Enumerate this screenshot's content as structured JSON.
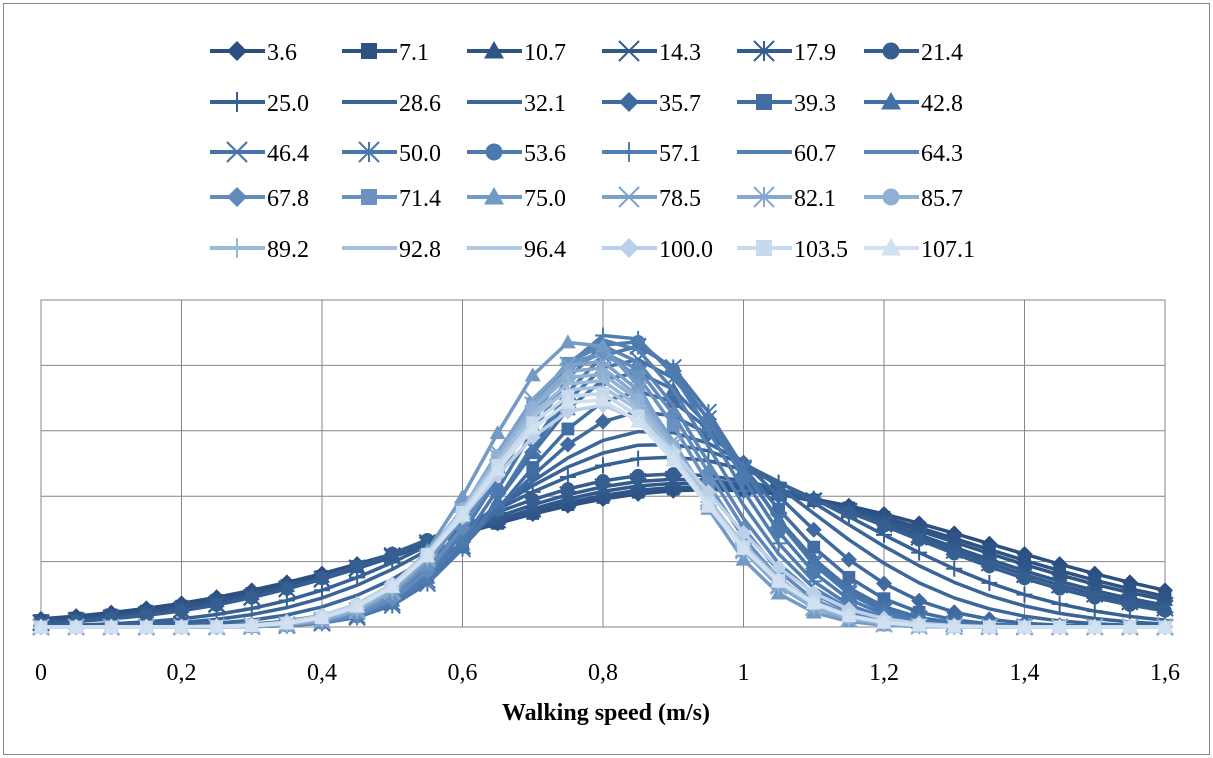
{
  "chart_data": {
    "type": "line",
    "title": "",
    "xlabel": "Walking speed (m/s)",
    "ylabel": "",
    "xlim": [
      0,
      1.6
    ],
    "ylim": [
      0,
      0.25
    ],
    "x_tick_labels": [
      "0",
      "0,2",
      "0,4",
      "0,6",
      "0,8",
      "1",
      "1,2",
      "1,4",
      "1,6"
    ],
    "x_tick_values": [
      0,
      0.2,
      0.4,
      0.6,
      0.8,
      1.0,
      1.2,
      1.4,
      1.6
    ],
    "grid": true,
    "legend_position": "top",
    "x_step": 0.05,
    "series": [
      {
        "name": "3.6",
        "color": "#2b4f80",
        "marker": "diamond",
        "mean": 0.95,
        "sd": 0.4,
        "peak": 0.105
      },
      {
        "name": "7.1",
        "color": "#2d5283",
        "marker": "square",
        "mean": 0.94,
        "sd": 0.38,
        "peak": 0.106
      },
      {
        "name": "10.7",
        "color": "#2f5587",
        "marker": "triangle",
        "mean": 0.93,
        "sd": 0.37,
        "peak": 0.107
      },
      {
        "name": "14.3",
        "color": "#31588a",
        "marker": "x",
        "mean": 0.92,
        "sd": 0.35,
        "peak": 0.11
      },
      {
        "name": "17.9",
        "color": "#335b8e",
        "marker": "asterisk",
        "mean": 0.91,
        "sd": 0.34,
        "peak": 0.113
      },
      {
        "name": "21.4",
        "color": "#355e91",
        "marker": "circle",
        "mean": 0.9,
        "sd": 0.33,
        "peak": 0.117
      },
      {
        "name": "25.0",
        "color": "#376195",
        "marker": "plus",
        "mean": 0.89,
        "sd": 0.28,
        "peak": 0.13
      },
      {
        "name": "28.6",
        "color": "#3a6498",
        "marker": "none",
        "mean": 0.88,
        "sd": 0.25,
        "peak": 0.14
      },
      {
        "name": "32.1",
        "color": "#3c679b",
        "marker": "none",
        "mean": 0.87,
        "sd": 0.22,
        "peak": 0.15
      },
      {
        "name": "35.7",
        "color": "#3e6a9f",
        "marker": "diamond",
        "mean": 0.86,
        "sd": 0.19,
        "peak": 0.165
      },
      {
        "name": "39.3",
        "color": "#416da2",
        "marker": "square",
        "mean": 0.85,
        "sd": 0.17,
        "peak": 0.18
      },
      {
        "name": "42.8",
        "color": "#4370a5",
        "marker": "triangle",
        "mean": 0.84,
        "sd": 0.16,
        "peak": 0.195
      },
      {
        "name": "46.4",
        "color": "#4673a8",
        "marker": "x",
        "mean": 0.84,
        "sd": 0.155,
        "peak": 0.205
      },
      {
        "name": "50.0",
        "color": "#4976ab",
        "marker": "asterisk",
        "mean": 0.84,
        "sd": 0.15,
        "peak": 0.215
      },
      {
        "name": "53.6",
        "color": "#4c79ae",
        "marker": "circle",
        "mean": 0.83,
        "sd": 0.148,
        "peak": 0.22
      },
      {
        "name": "57.1",
        "color": "#4f7cb1",
        "marker": "plus",
        "mean": 0.82,
        "sd": 0.145,
        "peak": 0.225
      },
      {
        "name": "60.7",
        "color": "#5580b4",
        "marker": "none",
        "mean": 0.81,
        "sd": 0.145,
        "peak": 0.22
      },
      {
        "name": "64.3",
        "color": "#5b85b8",
        "marker": "none",
        "mean": 0.8,
        "sd": 0.145,
        "peak": 0.215
      },
      {
        "name": "67.8",
        "color": "#628bbc",
        "marker": "diamond",
        "mean": 0.8,
        "sd": 0.14,
        "peak": 0.21
      },
      {
        "name": "71.4",
        "color": "#6a92c0",
        "marker": "square",
        "mean": 0.79,
        "sd": 0.14,
        "peak": 0.21
      },
      {
        "name": "75.0",
        "color": "#7399c5",
        "marker": "triangle",
        "mean": 0.77,
        "sd": 0.135,
        "peak": 0.22
      },
      {
        "name": "78.5",
        "color": "#7ca1c9",
        "marker": "x",
        "mean": 0.78,
        "sd": 0.14,
        "peak": 0.205
      },
      {
        "name": "82.1",
        "color": "#86a8ce",
        "marker": "asterisk",
        "mean": 0.78,
        "sd": 0.14,
        "peak": 0.2
      },
      {
        "name": "85.7",
        "color": "#90b0d3",
        "marker": "circle",
        "mean": 0.78,
        "sd": 0.145,
        "peak": 0.195
      },
      {
        "name": "89.2",
        "color": "#9ab8d8",
        "marker": "plus",
        "mean": 0.78,
        "sd": 0.145,
        "peak": 0.19
      },
      {
        "name": "92.8",
        "color": "#a5c0dd",
        "marker": "none",
        "mean": 0.78,
        "sd": 0.15,
        "peak": 0.185
      },
      {
        "name": "96.4",
        "color": "#b0c8e2",
        "marker": "none",
        "mean": 0.78,
        "sd": 0.15,
        "peak": 0.18
      },
      {
        "name": "100.0",
        "color": "#bcd1e7",
        "marker": "diamond",
        "mean": 0.79,
        "sd": 0.16,
        "peak": 0.17
      },
      {
        "name": "103.5",
        "color": "#c7d9ec",
        "marker": "square",
        "mean": 0.78,
        "sd": 0.15,
        "peak": 0.18
      },
      {
        "name": "107.1",
        "color": "#d2e1f1",
        "marker": "triangle",
        "mean": 0.78,
        "sd": 0.15,
        "peak": 0.175
      }
    ]
  }
}
